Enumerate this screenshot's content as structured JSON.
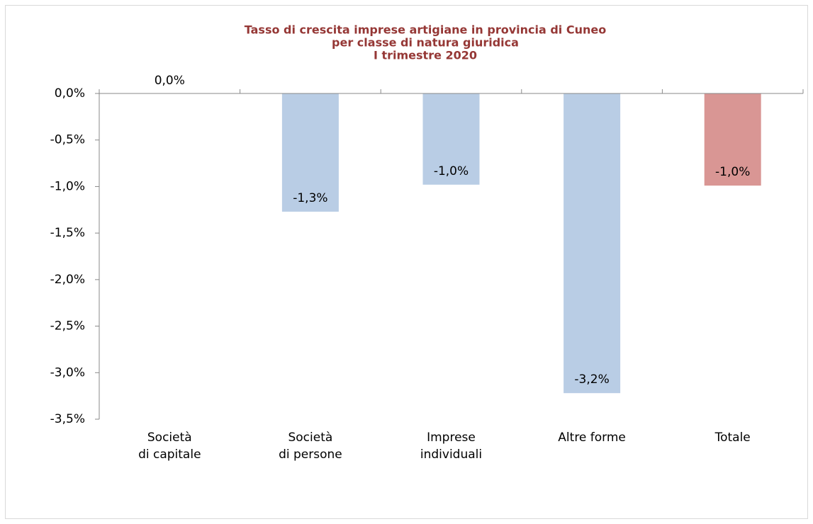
{
  "chart_data": {
    "type": "bar",
    "title": [
      "Tasso di crescita imprese artigiane in provincia di Cuneo",
      "per classe di natura giuridica",
      "I trimestre 2020"
    ],
    "categories": [
      [
        "Società",
        "di capitale"
      ],
      [
        "Società",
        "di persone"
      ],
      [
        "Imprese",
        "individuali"
      ],
      [
        "Altre forme"
      ],
      [
        "Totale"
      ]
    ],
    "values": [
      0.0,
      -1.27,
      -0.98,
      -3.22,
      -0.99
    ],
    "value_labels": [
      "0,0%",
      "-1,3%",
      "-1,0%",
      "-3,2%",
      "-1,0%"
    ],
    "colors": [
      "#b9cde5",
      "#b9cde5",
      "#b9cde5",
      "#b9cde5",
      "#d99694"
    ],
    "ylim": [
      -3.5,
      0
    ],
    "yticks": [
      {
        "value": 0,
        "label": "0,0%"
      },
      {
        "value": -0.5,
        "label": "-0,5%"
      },
      {
        "value": -1.0,
        "label": "-1,0%"
      },
      {
        "value": -1.5,
        "label": "-1,5%"
      },
      {
        "value": -2.0,
        "label": "-2,0%"
      },
      {
        "value": -2.5,
        "label": "-2,5%"
      },
      {
        "value": -3.0,
        "label": "-3,0%"
      },
      {
        "value": -3.5,
        "label": "-3,5%"
      }
    ],
    "grid": false
  }
}
